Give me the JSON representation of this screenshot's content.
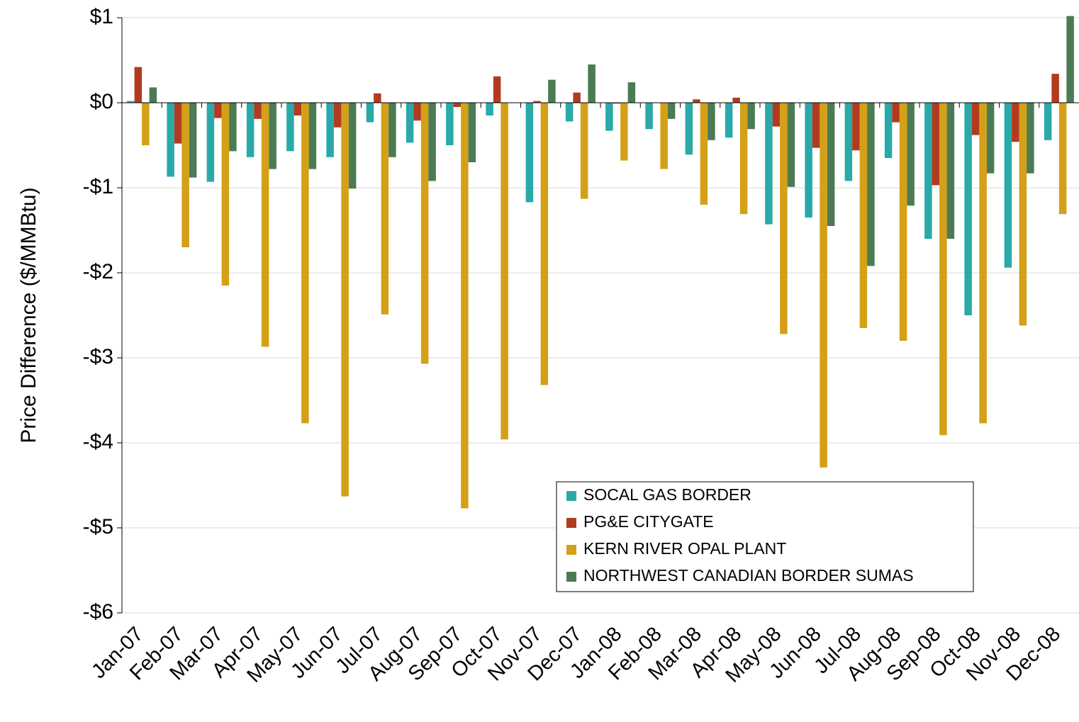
{
  "chart_data": {
    "type": "bar",
    "y_axis_label": "Price Difference  ($/MMBtu)",
    "categories": [
      "Jan-07",
      "Feb-07",
      "Mar-07",
      "Apr-07",
      "May-07",
      "Jun-07",
      "Jul-07",
      "Aug-07",
      "Sep-07",
      "Oct-07",
      "Nov-07",
      "Dec-07",
      "Jan-08",
      "Feb-08",
      "Mar-08",
      "Apr-08",
      "May-08",
      "Jun-08",
      "Jul-08",
      "Aug-08",
      "Sep-08",
      "Oct-08",
      "Nov-08",
      "Dec-08"
    ],
    "series": [
      {
        "name": "SOCAL GAS BORDER",
        "color": "#2aa9a9",
        "values": [
          0.02,
          -0.87,
          -0.93,
          -0.64,
          -0.57,
          -0.64,
          -0.23,
          -0.47,
          -0.5,
          -0.15,
          -1.17,
          -0.22,
          -0.33,
          -0.31,
          -0.61,
          -0.41,
          -1.43,
          -1.35,
          -0.92,
          -0.65,
          -1.6,
          -2.5,
          -1.94,
          -0.44
        ]
      },
      {
        "name": "PG&E CITYGATE",
        "color": "#b23b1f",
        "values": [
          0.42,
          -0.48,
          -0.18,
          -0.19,
          -0.15,
          -0.29,
          0.11,
          -0.21,
          -0.05,
          0.31,
          0.02,
          0.12,
          -0.01,
          0,
          0.04,
          0.06,
          -0.28,
          -0.53,
          -0.56,
          -0.23,
          -0.97,
          -0.38,
          -0.46,
          0.34
        ]
      },
      {
        "name": "KERN RIVER OPAL PLANT",
        "color": "#d4a017",
        "values": [
          -0.5,
          -1.7,
          -2.15,
          -2.87,
          -3.77,
          -4.63,
          -2.49,
          -3.07,
          -4.77,
          -3.96,
          -3.32,
          -1.13,
          -0.68,
          -0.78,
          -1.2,
          -1.31,
          -2.72,
          -4.29,
          -2.65,
          -2.8,
          -3.91,
          -3.77,
          -2.62,
          -1.31
        ]
      },
      {
        "name": "NORTHWEST CANADIAN BORDER SUMAS",
        "color": "#4b7b52",
        "values": [
          0.18,
          -0.88,
          -0.57,
          -0.78,
          -0.78,
          -1.01,
          -0.64,
          -0.92,
          -0.7,
          0,
          0.27,
          0.45,
          0.24,
          -0.19,
          -0.44,
          -0.31,
          -0.99,
          -1.45,
          -1.92,
          -1.21,
          -1.6,
          -0.83,
          -0.83,
          1.02
        ]
      }
    ],
    "ylim": [
      -6,
      1
    ],
    "yticks": [
      {
        "value": -6,
        "label": "-$6"
      },
      {
        "value": -5,
        "label": "-$5"
      },
      {
        "value": -4,
        "label": "-$4"
      },
      {
        "value": -3,
        "label": "-$3"
      },
      {
        "value": -2,
        "label": "-$2"
      },
      {
        "value": -1,
        "label": "-$1"
      },
      {
        "value": 0,
        "label": "$0"
      },
      {
        "value": 1,
        "label": "$1"
      }
    ],
    "grid": true
  }
}
